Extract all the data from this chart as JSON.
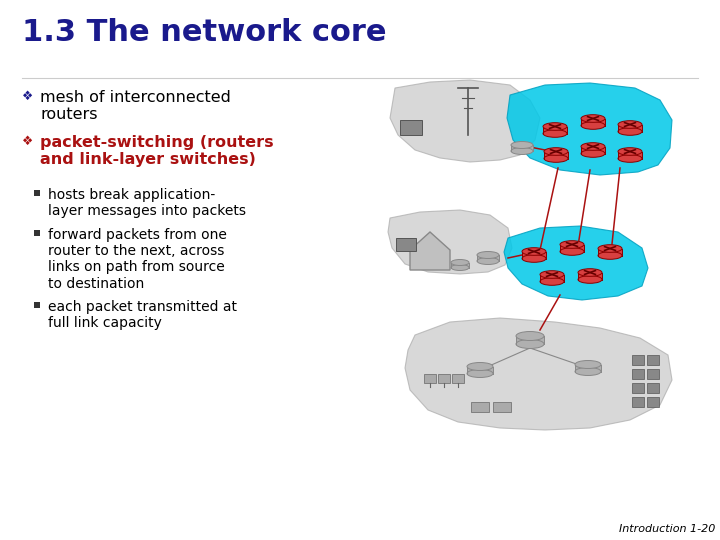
{
  "title": "1.3 The network core",
  "title_color": "#1a1a8c",
  "title_fontsize": 22,
  "background_color": "#ffffff",
  "bullet1_symbol": "❖",
  "bullet1_text": "mesh of interconnected\nrouters",
  "bullet1_color": "#000000",
  "bullet1_sym_color": "#1a1a8c",
  "bullet2_symbol": "❖",
  "bullet2_text": "packet-switching (routers\nand link-layer switches)",
  "bullet2_color": "#aa1111",
  "bullet2_sym_color": "#aa1111",
  "bullet_fontsize": 11.5,
  "sub_bullets": [
    "hosts break application-\nlayer messages into packets",
    "forward packets from one\nrouter to the next, across\nlinks on path from source\nto destination",
    "each packet transmitted at\nfull link capacity"
  ],
  "sub_bullet_color": "#000000",
  "sub_bullet_fontsize": 10,
  "footer_text": "Introduction 1-20",
  "footer_color": "#000000",
  "footer_fontsize": 8,
  "cyan_color": "#00c8e8",
  "gray_blob_color": "#c8c8c8",
  "red_router_color": "#d84040",
  "red_router_edge": "#8b0000",
  "gray_router_color": "#b0b0b0",
  "gray_router_edge": "#888888",
  "link_color": "#aa1111"
}
